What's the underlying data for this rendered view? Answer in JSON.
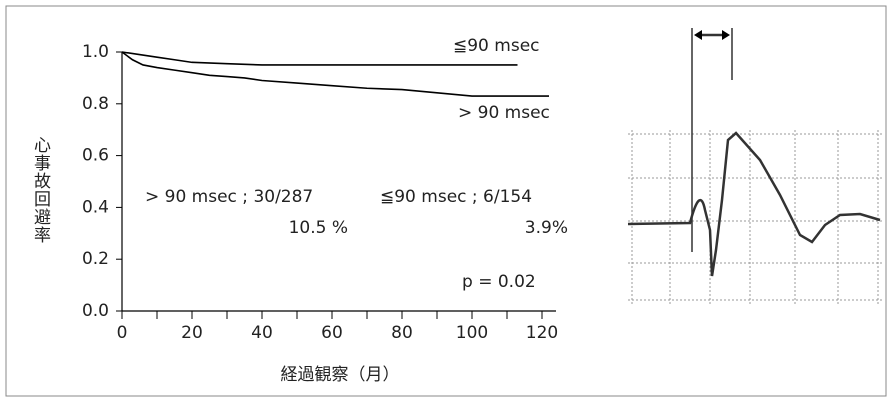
{
  "chart_data": {
    "type": "line",
    "y_label": "心事故回避率",
    "x_label": "経過観察（月）",
    "xlim": [
      0,
      124
    ],
    "ylim": [
      0,
      1.0
    ],
    "xticks": [
      0,
      20,
      40,
      60,
      80,
      100,
      120
    ],
    "xminorticks": [
      10,
      30,
      50,
      70,
      90,
      110
    ],
    "yticks": [
      {
        "value": 0,
        "label": "0.0"
      },
      {
        "value": 0.2,
        "label": "0.2"
      },
      {
        "value": 0.4,
        "label": "0.4"
      },
      {
        "value": 0.6,
        "label": "0.6"
      },
      {
        "value": 0.8,
        "label": "0.8"
      },
      {
        "value": 1.0,
        "label": "1.0"
      }
    ],
    "series": [
      {
        "name": "≦90 msec",
        "color": "#000000",
        "x": [
          0,
          5,
          10,
          15,
          20,
          30,
          40,
          113
        ],
        "values": [
          1.0,
          0.99,
          0.98,
          0.97,
          0.96,
          0.955,
          0.95,
          0.95
        ]
      },
      {
        "name": "> 90 msec",
        "color": "#000000",
        "x": [
          0,
          3,
          6,
          10,
          15,
          20,
          25,
          30,
          35,
          40,
          50,
          60,
          70,
          80,
          100,
          122
        ],
        "values": [
          1.0,
          0.97,
          0.95,
          0.94,
          0.93,
          0.92,
          0.91,
          0.905,
          0.9,
          0.89,
          0.88,
          0.87,
          0.86,
          0.855,
          0.83,
          0.83
        ]
      }
    ],
    "annotations": [
      "> 90 msec ; 30/287",
      "10.5 %",
      "≦90 msec ; 6/154",
      "3.9%",
      "p = 0.02"
    ]
  }
}
